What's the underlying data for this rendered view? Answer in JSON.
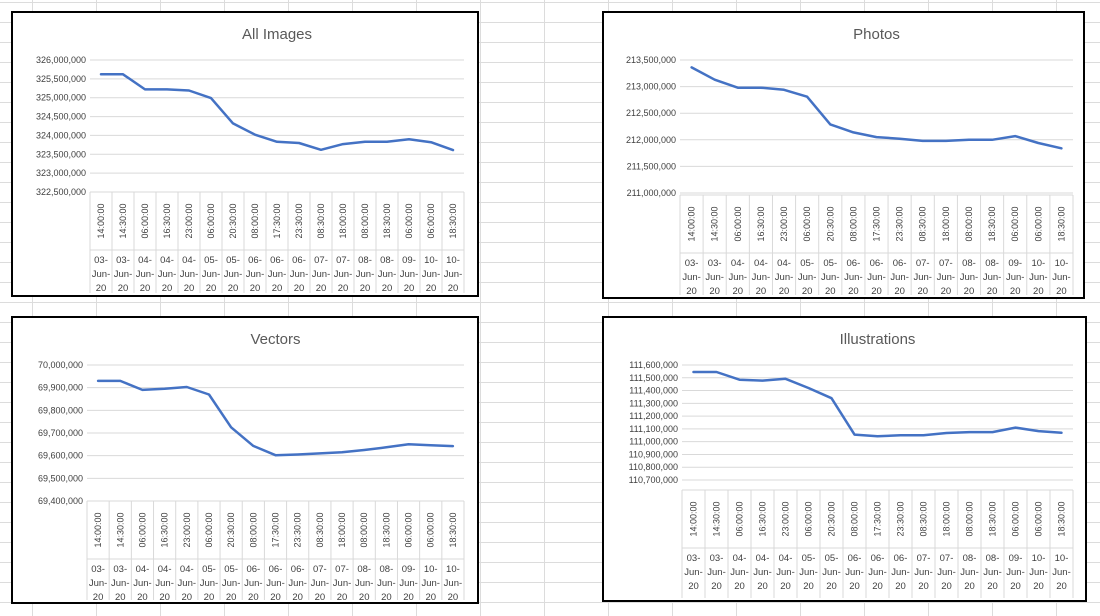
{
  "chart_data": [
    {
      "type": "line",
      "title": "All Images",
      "xlabel": "",
      "ylabel": "",
      "ylim": [
        322500000,
        326000000
      ],
      "yticks": [
        326000000,
        325500000,
        325000000,
        324500000,
        324000000,
        323500000,
        323000000,
        322500000
      ],
      "ytick_labels": [
        "326,000,000",
        "325,500,000",
        "325,000,000",
        "324,500,000",
        "324,000,000",
        "323,500,000",
        "323,000,000",
        "322,500,000"
      ],
      "categories": [
        {
          "time": "14:00:00",
          "date": [
            "03-",
            "Jun-",
            "20"
          ]
        },
        {
          "time": "14:30:00",
          "date": [
            "03-",
            "Jun-",
            "20"
          ]
        },
        {
          "time": "06:00:00",
          "date": [
            "04-",
            "Jun-",
            "20"
          ]
        },
        {
          "time": "16:30:00",
          "date": [
            "04-",
            "Jun-",
            "20"
          ]
        },
        {
          "time": "23:00:00",
          "date": [
            "04-",
            "Jun-",
            "20"
          ]
        },
        {
          "time": "06:00:00",
          "date": [
            "05-",
            "Jun-",
            "20"
          ]
        },
        {
          "time": "20:30:00",
          "date": [
            "05-",
            "Jun-",
            "20"
          ]
        },
        {
          "time": "08:00:00",
          "date": [
            "06-",
            "Jun-",
            "20"
          ]
        },
        {
          "time": "17:30:00",
          "date": [
            "06-",
            "Jun-",
            "20"
          ]
        },
        {
          "time": "23:30:00",
          "date": [
            "06-",
            "Jun-",
            "20"
          ]
        },
        {
          "time": "08:30:00",
          "date": [
            "07-",
            "Jun-",
            "20"
          ]
        },
        {
          "time": "18:00:00",
          "date": [
            "07-",
            "Jun-",
            "20"
          ]
        },
        {
          "time": "08:00:00",
          "date": [
            "08-",
            "Jun-",
            "20"
          ]
        },
        {
          "time": "18:30:00",
          "date": [
            "08-",
            "Jun-",
            "20"
          ]
        },
        {
          "time": "06:00:00",
          "date": [
            "09-",
            "Jun-",
            "20"
          ]
        },
        {
          "time": "06:00:00",
          "date": [
            "10-",
            "Jun-",
            "20"
          ]
        },
        {
          "time": "18:30:00",
          "date": [
            "10-",
            "Jun-",
            "20"
          ]
        }
      ],
      "values": [
        325620000,
        325620000,
        325220000,
        325220000,
        325190000,
        324990000,
        324320000,
        324020000,
        323830000,
        323800000,
        323620000,
        323770000,
        323830000,
        323830000,
        323900000,
        323820000,
        323610000
      ],
      "grid": true,
      "legend": "none",
      "line_color": "#4472c4"
    },
    {
      "type": "line",
      "title": "Photos",
      "xlabel": "",
      "ylabel": "",
      "ylim": [
        211000000,
        213500000
      ],
      "yticks": [
        213500000,
        213000000,
        212500000,
        212000000,
        211500000,
        211000000
      ],
      "ytick_labels": [
        "213,500,000",
        "213,000,000",
        "212,500,000",
        "212,000,000",
        "211,500,000",
        "211,000,000"
      ],
      "categories": [
        {
          "time": "14:00:00",
          "date": [
            "03-",
            "Jun-",
            "20"
          ]
        },
        {
          "time": "14:30:00",
          "date": [
            "03-",
            "Jun-",
            "20"
          ]
        },
        {
          "time": "06:00:00",
          "date": [
            "04-",
            "Jun-",
            "20"
          ]
        },
        {
          "time": "16:30:00",
          "date": [
            "04-",
            "Jun-",
            "20"
          ]
        },
        {
          "time": "23:00:00",
          "date": [
            "04-",
            "Jun-",
            "20"
          ]
        },
        {
          "time": "06:00:00",
          "date": [
            "05-",
            "Jun-",
            "20"
          ]
        },
        {
          "time": "20:30:00",
          "date": [
            "05-",
            "Jun-",
            "20"
          ]
        },
        {
          "time": "08:00:00",
          "date": [
            "06-",
            "Jun-",
            "20"
          ]
        },
        {
          "time": "17:30:00",
          "date": [
            "06-",
            "Jun-",
            "20"
          ]
        },
        {
          "time": "23:30:00",
          "date": [
            "06-",
            "Jun-",
            "20"
          ]
        },
        {
          "time": "08:30:00",
          "date": [
            "07-",
            "Jun-",
            "20"
          ]
        },
        {
          "time": "18:00:00",
          "date": [
            "07-",
            "Jun-",
            "20"
          ]
        },
        {
          "time": "08:00:00",
          "date": [
            "08-",
            "Jun-",
            "20"
          ]
        },
        {
          "time": "18:30:00",
          "date": [
            "08-",
            "Jun-",
            "20"
          ]
        },
        {
          "time": "06:00:00",
          "date": [
            "09-",
            "Jun-",
            "20"
          ]
        },
        {
          "time": "06:00:00",
          "date": [
            "10-",
            "Jun-",
            "20"
          ]
        },
        {
          "time": "18:30:00",
          "date": [
            "10-",
            "Jun-",
            "20"
          ]
        }
      ],
      "values": [
        213360000,
        213130000,
        212980000,
        212980000,
        212940000,
        212810000,
        212290000,
        212140000,
        212050000,
        212020000,
        211980000,
        211980000,
        212000000,
        212000000,
        212070000,
        211940000,
        211840000
      ],
      "grid": true,
      "legend": "none",
      "line_color": "#4472c4"
    },
    {
      "type": "line",
      "title": "Vectors",
      "xlabel": "",
      "ylabel": "",
      "ylim": [
        69400000,
        70000000
      ],
      "yticks": [
        70000000,
        69900000,
        69800000,
        69700000,
        69600000,
        69500000,
        69400000
      ],
      "ytick_labels": [
        "70,000,000",
        "69,900,000",
        "69,800,000",
        "69,700,000",
        "69,600,000",
        "69,500,000",
        "69,400,000"
      ],
      "categories": [
        {
          "time": "14:00:00",
          "date": [
            "03-",
            "Jun-",
            "20"
          ]
        },
        {
          "time": "14:30:00",
          "date": [
            "03-",
            "Jun-",
            "20"
          ]
        },
        {
          "time": "06:00:00",
          "date": [
            "04-",
            "Jun-",
            "20"
          ]
        },
        {
          "time": "16:30:00",
          "date": [
            "04-",
            "Jun-",
            "20"
          ]
        },
        {
          "time": "23:00:00",
          "date": [
            "04-",
            "Jun-",
            "20"
          ]
        },
        {
          "time": "06:00:00",
          "date": [
            "05-",
            "Jun-",
            "20"
          ]
        },
        {
          "time": "20:30:00",
          "date": [
            "05-",
            "Jun-",
            "20"
          ]
        },
        {
          "time": "08:00:00",
          "date": [
            "06-",
            "Jun-",
            "20"
          ]
        },
        {
          "time": "17:30:00",
          "date": [
            "06-",
            "Jun-",
            "20"
          ]
        },
        {
          "time": "23:30:00",
          "date": [
            "06-",
            "Jun-",
            "20"
          ]
        },
        {
          "time": "08:30:00",
          "date": [
            "07-",
            "Jun-",
            "20"
          ]
        },
        {
          "time": "18:00:00",
          "date": [
            "07-",
            "Jun-",
            "20"
          ]
        },
        {
          "time": "08:00:00",
          "date": [
            "08-",
            "Jun-",
            "20"
          ]
        },
        {
          "time": "18:30:00",
          "date": [
            "08-",
            "Jun-",
            "20"
          ]
        },
        {
          "time": "06:00:00",
          "date": [
            "09-",
            "Jun-",
            "20"
          ]
        },
        {
          "time": "06:00:00",
          "date": [
            "10-",
            "Jun-",
            "20"
          ]
        },
        {
          "time": "18:30:00",
          "date": [
            "10-",
            "Jun-",
            "20"
          ]
        }
      ],
      "values": [
        69930000,
        69930000,
        69890000,
        69895000,
        69903000,
        69870000,
        69725000,
        69643000,
        69602000,
        69605000,
        69610000,
        69615000,
        69625000,
        69637000,
        69650000,
        69646000,
        69642000
      ],
      "grid": true,
      "legend": "none",
      "line_color": "#4472c4"
    },
    {
      "type": "line",
      "title": "Illustrations",
      "xlabel": "",
      "ylabel": "",
      "ylim": [
        110700000,
        111600000
      ],
      "yticks": [
        111600000,
        111500000,
        111400000,
        111300000,
        111200000,
        111100000,
        111000000,
        110900000,
        110800000,
        110700000
      ],
      "ytick_labels": [
        "111,600,000",
        "111,500,000",
        "111,400,000",
        "111,300,000",
        "111,200,000",
        "111,100,000",
        "111,000,000",
        "110,900,000",
        "110,800,000",
        "110,700,000"
      ],
      "categories": [
        {
          "time": "14:00:00",
          "date": [
            "03-",
            "Jun-",
            "20"
          ]
        },
        {
          "time": "14:30:00",
          "date": [
            "03-",
            "Jun-",
            "20"
          ]
        },
        {
          "time": "06:00:00",
          "date": [
            "04-",
            "Jun-",
            "20"
          ]
        },
        {
          "time": "16:30:00",
          "date": [
            "04-",
            "Jun-",
            "20"
          ]
        },
        {
          "time": "23:00:00",
          "date": [
            "04-",
            "Jun-",
            "20"
          ]
        },
        {
          "time": "06:00:00",
          "date": [
            "05-",
            "Jun-",
            "20"
          ]
        },
        {
          "time": "20:30:00",
          "date": [
            "05-",
            "Jun-",
            "20"
          ]
        },
        {
          "time": "08:00:00",
          "date": [
            "06-",
            "Jun-",
            "20"
          ]
        },
        {
          "time": "17:30:00",
          "date": [
            "06-",
            "Jun-",
            "20"
          ]
        },
        {
          "time": "23:30:00",
          "date": [
            "06-",
            "Jun-",
            "20"
          ]
        },
        {
          "time": "08:30:00",
          "date": [
            "07-",
            "Jun-",
            "20"
          ]
        },
        {
          "time": "18:00:00",
          "date": [
            "07-",
            "Jun-",
            "20"
          ]
        },
        {
          "time": "08:00:00",
          "date": [
            "08-",
            "Jun-",
            "20"
          ]
        },
        {
          "time": "18:30:00",
          "date": [
            "08-",
            "Jun-",
            "20"
          ]
        },
        {
          "time": "06:00:00",
          "date": [
            "09-",
            "Jun-",
            "20"
          ]
        },
        {
          "time": "06:00:00",
          "date": [
            "10-",
            "Jun-",
            "20"
          ]
        },
        {
          "time": "18:30:00",
          "date": [
            "10-",
            "Jun-",
            "20"
          ]
        }
      ],
      "values": [
        111545000,
        111545000,
        111485000,
        111478000,
        111492000,
        111420000,
        111340000,
        111055000,
        111043000,
        111050000,
        111050000,
        111068000,
        111075000,
        111075000,
        111110000,
        111083000,
        111069000
      ],
      "grid": true,
      "legend": "none",
      "line_color": "#4472c4"
    }
  ]
}
